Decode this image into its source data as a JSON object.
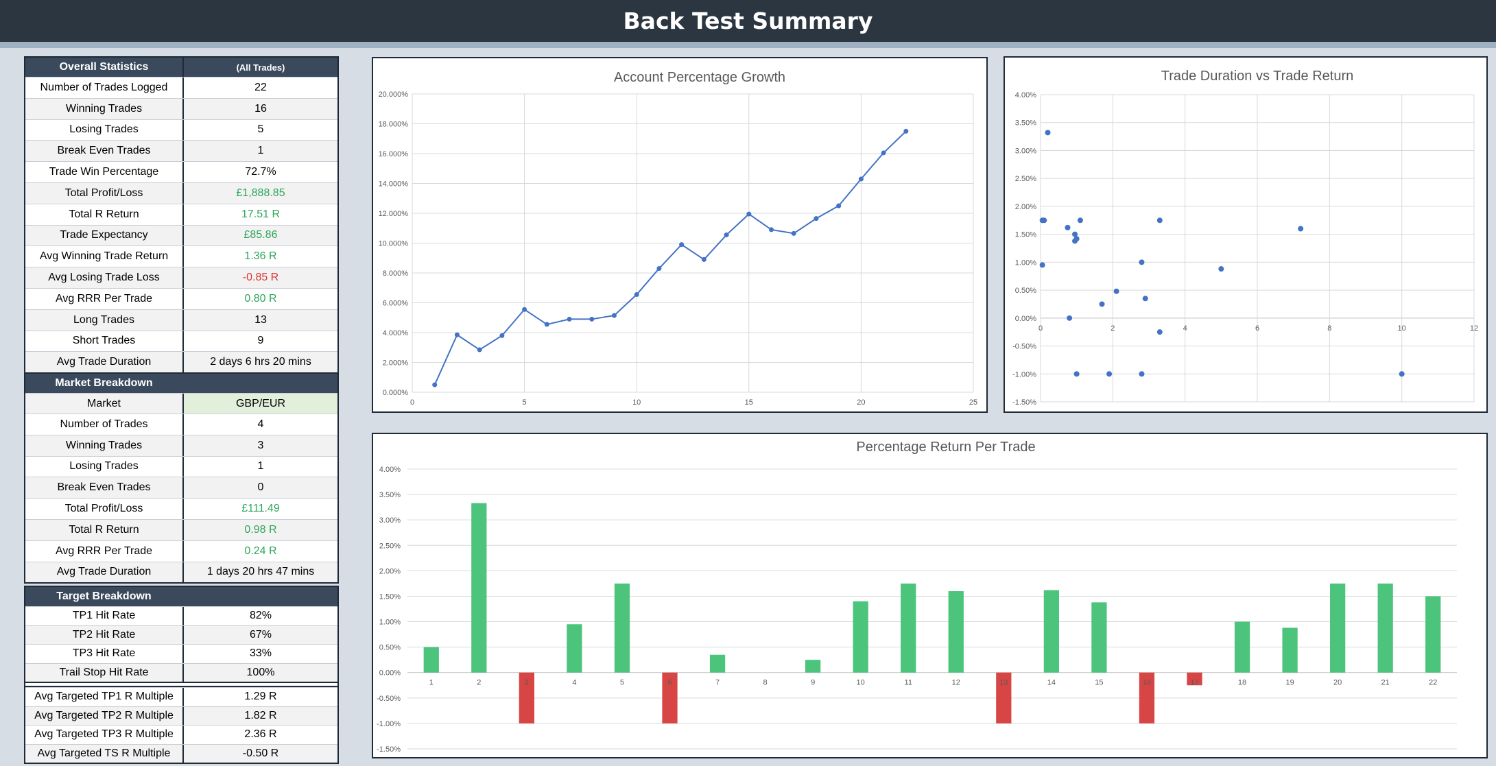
{
  "title": "Back Test Summary",
  "overall": {
    "header": [
      "Overall Statistics",
      "(All Trades)"
    ],
    "rows": [
      {
        "label": "Number of Trades Logged",
        "value": "22",
        "color": ""
      },
      {
        "label": "Winning Trades",
        "value": "16",
        "color": ""
      },
      {
        "label": "Losing Trades",
        "value": "5",
        "color": ""
      },
      {
        "label": "Break Even Trades",
        "value": "1",
        "color": ""
      },
      {
        "label": "Trade Win Percentage",
        "value": "72.7%",
        "color": ""
      },
      {
        "label": "Total Profit/Loss",
        "value": "£1,888.85",
        "color": "green"
      },
      {
        "label": "Total R Return",
        "value": "17.51 R",
        "color": "green"
      },
      {
        "label": "Trade Expectancy",
        "value": "£85.86",
        "color": "green"
      },
      {
        "label": "Avg Winning Trade Return",
        "value": "1.36 R",
        "color": "green"
      },
      {
        "label": "Avg Losing Trade Loss",
        "value": "-0.85 R",
        "color": "red"
      },
      {
        "label": "Avg RRR Per Trade",
        "value": "0.80 R",
        "color": "green"
      },
      {
        "label": "Long Trades",
        "value": "13",
        "color": ""
      },
      {
        "label": "Short Trades",
        "value": "9",
        "color": ""
      },
      {
        "label": "Avg Trade Duration",
        "value": "2 days 6 hrs 20 mins",
        "color": ""
      }
    ]
  },
  "market": {
    "header": "Market Breakdown",
    "market_label": "Market",
    "market_value": "GBP/EUR",
    "rows": [
      {
        "label": "Number of Trades",
        "value": "4",
        "color": ""
      },
      {
        "label": "Winning Trades",
        "value": "3",
        "color": ""
      },
      {
        "label": "Losing Trades",
        "value": "1",
        "color": ""
      },
      {
        "label": "Break Even Trades",
        "value": "0",
        "color": ""
      },
      {
        "label": "Total Profit/Loss",
        "value": "£111.49",
        "color": "green"
      },
      {
        "label": "Total R Return",
        "value": "0.98 R",
        "color": "green"
      },
      {
        "label": "Avg RRR Per Trade",
        "value": "0.24 R",
        "color": "green"
      },
      {
        "label": "Avg Trade Duration",
        "value": "1 days 20 hrs 47 mins",
        "color": ""
      }
    ]
  },
  "targets": {
    "header": "Target Breakdown",
    "rows1": [
      {
        "label": "TP1 Hit Rate",
        "value": "82%"
      },
      {
        "label": "TP2 Hit Rate",
        "value": "67%"
      },
      {
        "label": "TP3 Hit Rate",
        "value": "33%"
      },
      {
        "label": "Trail Stop Hit Rate",
        "value": "100%"
      }
    ],
    "rows2": [
      {
        "label": "Avg Targeted TP1 R Multiple",
        "value": "1.29 R"
      },
      {
        "label": "Avg Targeted TP2 R Multiple",
        "value": "1.82 R"
      },
      {
        "label": "Avg Targeted TP3 R Multiple",
        "value": "2.36 R"
      },
      {
        "label": "Avg Targeted TS R Multiple",
        "value": "-0.50 R"
      }
    ]
  },
  "colors": {
    "line": "#4472c4",
    "positive": "#4cc47c",
    "negative": "#d84545"
  },
  "chart_data": [
    {
      "type": "line",
      "title": "Account Percentage Growth",
      "x": [
        1,
        2,
        3,
        4,
        5,
        6,
        7,
        8,
        9,
        10,
        11,
        12,
        13,
        14,
        15,
        16,
        17,
        18,
        19,
        20,
        21,
        22
      ],
      "values": [
        0.5,
        3.85,
        2.85,
        3.8,
        5.55,
        4.55,
        4.9,
        4.9,
        5.15,
        6.55,
        8.3,
        9.9,
        8.9,
        10.55,
        11.95,
        10.9,
        10.65,
        11.65,
        12.5,
        14.3,
        16.05,
        17.5
      ],
      "xlim": [
        0,
        25
      ],
      "xticks": [
        0,
        5,
        10,
        15,
        20,
        25
      ],
      "ylim": [
        0,
        20
      ],
      "yticks": [
        "0.000%",
        "2.000%",
        "4.000%",
        "6.000%",
        "8.000%",
        "10.000%",
        "12.000%",
        "14.000%",
        "16.000%",
        "18.000%",
        "20.000%"
      ],
      "grid": true
    },
    {
      "type": "scatter",
      "title": "Trade Duration vs Trade Return",
      "points": [
        [
          0.05,
          1.75
        ],
        [
          0.1,
          1.75
        ],
        [
          0.05,
          0.95
        ],
        [
          0.2,
          3.32
        ],
        [
          0.75,
          1.62
        ],
        [
          0.95,
          1.5
        ],
        [
          0.95,
          1.38
        ],
        [
          1.0,
          1.42
        ],
        [
          1.1,
          1.75
        ],
        [
          0.8,
          0.0
        ],
        [
          1.0,
          -1.0
        ],
        [
          1.7,
          0.25
        ],
        [
          1.9,
          -1.0
        ],
        [
          2.1,
          0.48
        ],
        [
          2.8,
          1.0
        ],
        [
          2.9,
          0.35
        ],
        [
          2.8,
          -1.0
        ],
        [
          3.3,
          1.75
        ],
        [
          3.3,
          -0.25
        ],
        [
          5.0,
          0.88
        ],
        [
          7.2,
          1.6
        ],
        [
          10.0,
          -1.0
        ]
      ],
      "xlim": [
        0,
        12
      ],
      "xticks": [
        "0",
        "2",
        "4",
        "6",
        "8",
        "10",
        "12"
      ],
      "ylim": [
        -1.5,
        4.0
      ],
      "yticks": [
        "-1.50%",
        "-1.00%",
        "-0.50%",
        "0.00%",
        "0.50%",
        "1.00%",
        "1.50%",
        "2.00%",
        "2.50%",
        "3.00%",
        "3.50%",
        "4.00%"
      ],
      "grid": true
    },
    {
      "type": "bar",
      "title": "Percentage Return Per Trade",
      "categories": [
        "1",
        "2",
        "3",
        "4",
        "5",
        "6",
        "7",
        "8",
        "9",
        "10",
        "11",
        "12",
        "13",
        "14",
        "15",
        "16",
        "17",
        "18",
        "19",
        "20",
        "21",
        "22"
      ],
      "values": [
        0.5,
        3.33,
        -1.0,
        0.95,
        1.75,
        -1.0,
        0.35,
        0.0,
        0.25,
        1.4,
        1.75,
        1.6,
        -1.0,
        1.62,
        1.38,
        -1.0,
        -0.25,
        1.0,
        0.88,
        1.75,
        1.75,
        1.5
      ],
      "ylim": [
        -1.5,
        4.0
      ],
      "yticks": [
        "-1.50%",
        "-1.00%",
        "-0.50%",
        "0.00%",
        "0.50%",
        "1.00%",
        "1.50%",
        "2.00%",
        "2.50%",
        "3.00%",
        "3.50%",
        "4.00%"
      ],
      "grid": true
    }
  ]
}
